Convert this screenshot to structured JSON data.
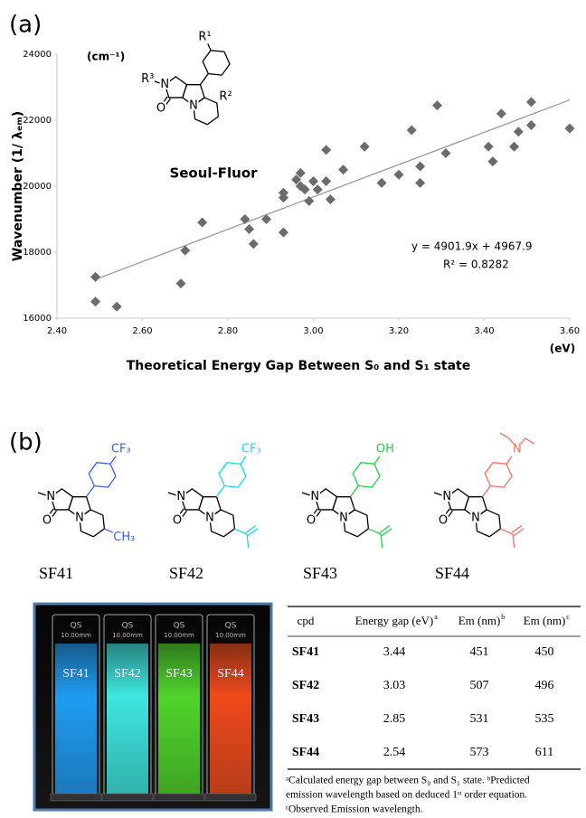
{
  "chart_data": {
    "type": "scatter",
    "x": [
      2.49,
      2.49,
      2.54,
      2.69,
      2.7,
      2.74,
      2.84,
      2.85,
      2.86,
      2.89,
      2.93,
      2.93,
      2.93,
      2.96,
      2.97,
      2.97,
      2.98,
      2.99,
      3.0,
      3.01,
      3.03,
      3.03,
      3.04,
      3.07,
      3.12,
      3.16,
      3.2,
      3.23,
      3.25,
      3.25,
      3.29,
      3.31,
      3.41,
      3.42,
      3.44,
      3.47,
      3.48,
      3.51,
      3.51,
      3.6
    ],
    "values": [
      17250,
      16500,
      16350,
      17050,
      18050,
      18900,
      19000,
      18700,
      18250,
      19000,
      18600,
      19650,
      19800,
      20200,
      20400,
      20000,
      19900,
      19550,
      20150,
      19900,
      20150,
      21100,
      19600,
      20500,
      21200,
      20100,
      20350,
      21700,
      20600,
      20100,
      22450,
      21000,
      21200,
      20750,
      22200,
      21200,
      21650,
      22550,
      21850,
      21750
    ],
    "color": "#6b6b6b",
    "xlim": [
      2.4,
      3.6
    ],
    "xticks": [
      {
        "value": 2.4,
        "label": "2.40"
      },
      {
        "value": 2.6,
        "label": "2.60"
      },
      {
        "value": 2.8,
        "label": "2.80"
      },
      {
        "value": 3.0,
        "label": "3.00"
      },
      {
        "value": 3.2,
        "label": "3.20"
      },
      {
        "value": 3.4,
        "label": "3.40"
      },
      {
        "value": 3.6,
        "label": "3.60"
      }
    ],
    "ylim": [
      16000,
      24000
    ],
    "yticks": [
      16000,
      18000,
      20000,
      22000,
      24000
    ],
    "xlabel": "Theoretical Energy Gap Between S₀ and S₁ state",
    "ylabel": "Wavenumber (1/ λₑₘ)",
    "x_unit": "(eV)",
    "y_unit": "(cm⁻¹)",
    "trendline": {
      "slope": 4901.9,
      "intercept": 4967.9,
      "color": "#9a9a9a"
    },
    "annotations": [
      "y = 4901.9x + 4967.9",
      "R² = 0.8282"
    ]
  },
  "panel_labels": [
    "(a)",
    "(b)"
  ],
  "scaffold": {
    "name": "Seoul-Fluor",
    "r_groups": [
      "R³",
      "R¹",
      "R²"
    ]
  },
  "atoms": {
    "n": "N",
    "o": "O"
  },
  "compounds": [
    {
      "name": "SF41",
      "color": "#3d5fe0",
      "para": "CF₃",
      "pyridine": "CH₃"
    },
    {
      "name": "SF42",
      "color": "#18d8ea",
      "para": "CF₃"
    },
    {
      "name": "SF43",
      "color": "#22cf4c",
      "para": "OH"
    },
    {
      "name": "SF44",
      "color": "#f06f5c",
      "para": "N"
    }
  ],
  "photo": {
    "cuvette_text": [
      "QS",
      "10.00mm"
    ],
    "vials": [
      {
        "label": "SF41",
        "color": "#1f9cf2"
      },
      {
        "label": "SF42",
        "color": "#3fe6e0"
      },
      {
        "label": "SF43",
        "color": "#4fd52a"
      },
      {
        "label": "SF44",
        "color": "#ef4a1c"
      }
    ]
  },
  "table": {
    "header": [
      {
        "text": "cpd"
      },
      {
        "text": "Energy gap (eV)",
        "note": "a"
      },
      {
        "text": "Em (nm)",
        "note": "b"
      },
      {
        "text": "Em (nm)",
        "note": "c"
      }
    ],
    "rows": [
      [
        "SF41",
        "3.44",
        "451",
        "450"
      ],
      [
        "SF42",
        "3.03",
        "507",
        "496"
      ],
      [
        "SF43",
        "2.85",
        "531",
        "535"
      ],
      [
        "SF44",
        "2.54",
        "573",
        "611"
      ]
    ],
    "footnotes": [
      "ᵃCalculated energy gap between S₀ and S₁ state.  ᵇPredicted",
      "emission wavelength based on deduced 1ˢᵗ order equation.",
      "ᶜObserved Emission wavelength."
    ]
  }
}
